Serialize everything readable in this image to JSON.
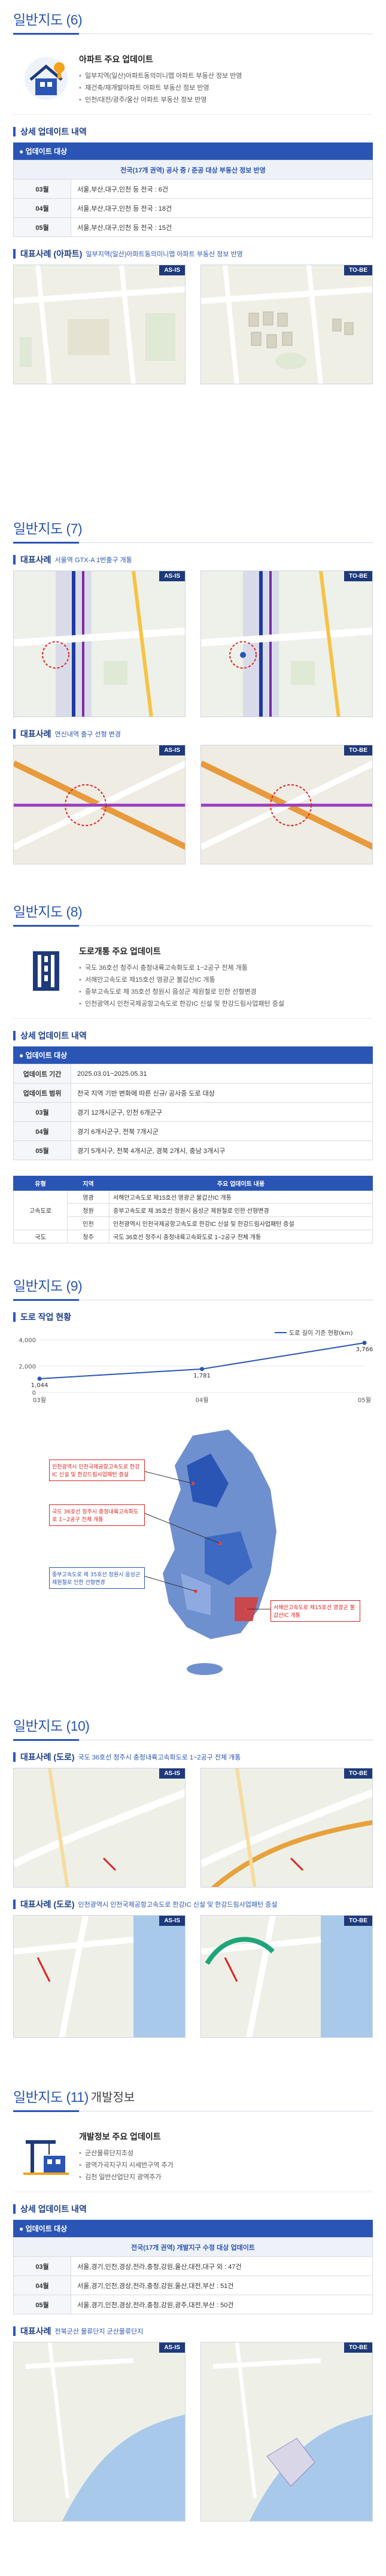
{
  "s6": {
    "title": "일반지도 (6)",
    "intro_head": "아파트 주요 업데이트",
    "intro_items": [
      "일부지역(일산)아파트동의미니맵 아파트 부동산 정보 반영",
      "재건축/재개발아파트 아파트 부동산 정보 반영",
      "인천/대전/광주/울산 아파트 부동산 정보 반영"
    ],
    "detail_title": "상세 업데이트 내역",
    "update_bar": "업데이트 대상",
    "table_header": "전국(17개 권역) 공사 중 / 준공 대상 부동산 정보 반영",
    "rows": [
      {
        "label": "03월",
        "value": "서울,부산,대구,인천 등 전국 : 6건"
      },
      {
        "label": "04월",
        "value": "서울,부산,대구,인천 등 전국 : 18건"
      },
      {
        "label": "05월",
        "value": "서울,부산,대구,인천 등 전국 : 15건"
      }
    ],
    "case_title": "대표사례 (아파트)",
    "case_note": "일부지역(일산)아파트동의미니맵 아파트 부동산 정보 반영",
    "as_is": "AS-IS",
    "to_be": "TO-BE"
  },
  "s7": {
    "title": "일반지도 (7)",
    "case1_title": "대표사례",
    "case1_note": "서울역 GTX-A 1번출구 개통",
    "case2_title": "대표사례",
    "case2_note": "연신내역 출구 선형 변경",
    "as_is": "AS-IS",
    "to_be": "TO-BE"
  },
  "s8": {
    "title": "일반지도 (8)",
    "intro_head": "도로개통 주요 업데이트",
    "intro_items": [
      "국도 36호선 청주시 충청내륙고속화도로 1~2공구 전체 개통",
      "서해안고속도로 제15호선 영광군 불갑산IC 개통",
      "중부고속도로 제 35호선 청원시 음성군 제원철로 인한 선형변경",
      "인천광역시 인천국제공항고속도로 한강IC 신설 및 한강드림사업패턴 증설"
    ],
    "detail_title": "상세 업데이트 내역",
    "update_bar": "업데이트 대상",
    "rows": [
      {
        "label": "업데이트 기간",
        "value": "2025.03.01~2025.05.31"
      },
      {
        "label": "업데이트 범위",
        "value": "전국 지역 기반 변화에 따른 신규/ 공사중 도로 대상"
      },
      {
        "label": "03월",
        "value": "경기 12개시군구, 인천 6개군구"
      },
      {
        "label": "04월",
        "value": "경기 6개시군구, 전북 7개시군"
      },
      {
        "label": "05월",
        "value": "경기 5개시구, 전북 4개시군, 경북 2개시, 충남 3개시구"
      }
    ],
    "mini_headers": [
      "유형",
      "지역",
      "주요 업데이트 내용"
    ],
    "mini_rows": [
      {
        "type": "고속도로",
        "region": "영광",
        "content": "서해안고속도로 제15호선 영광군 불갑산IC 개통"
      },
      {
        "type": "",
        "region": "청원",
        "content": "중부고속도로 제 35호선 청원시 음성군 제원철로 인한 선형변경"
      },
      {
        "type": "",
        "region": "인천",
        "content": "인천광역시 인천국제공항고속도로 한강IC 신설 및 한강드림사업패턴 증설"
      },
      {
        "type": "국도",
        "region": "청주",
        "content": "국도 36호선 청주시 충청내륙고속화도로 1~2공구 전체 개통"
      }
    ]
  },
  "s9": {
    "title": "일반지도 (9)",
    "chart_title": "도로 작업 현황",
    "callouts": [
      "인천광역시 인천국제공항고속도로 한강IC 신설 및 한강드림사업패턴 증설",
      "국도 36호선 청주시 충청내륙고속화도로 1~2공구 전체 개통",
      "중부고속도로 제 35호선 청원시 음성군 제원철로 인한 선형변경",
      "서해안고속도로 제15호선 영광군 불갑산IC 개통"
    ]
  },
  "chart_data": {
    "type": "line",
    "title": "도로 작업 현황",
    "categories": [
      "03월",
      "04월",
      "05월"
    ],
    "series": [
      {
        "name": "도로 길이 기준 현황(km)",
        "values": [
          1044,
          1781,
          3766
        ]
      }
    ],
    "value_labels": [
      "1,044",
      "1,781",
      "3,766"
    ],
    "ylim": [
      0,
      4000
    ],
    "yticks": [
      "0",
      "2,000",
      "4,000"
    ],
    "legend": "top-right",
    "color": "#2a55b5"
  },
  "s10": {
    "title": "일반지도 (10)",
    "case1_title": "대표사례 (도로)",
    "case1_note": "국도 36호선 청주시 충청내륙고속화도로 1~2공구 전체 개통",
    "case2_title": "대표사례 (도로)",
    "case2_note": "인천광역시 인천국제공항고속도로 한강IC 신설 및 한강드림사업패턴 증설",
    "as_is": "AS-IS",
    "to_be": "TO-BE"
  },
  "s11": {
    "title": "일반지도 (11)",
    "title_sub": "개발정보",
    "intro_head": "개발정보 주요 업데이트",
    "intro_items": [
      "군산물류단지조성",
      "광역가곡지구지 시세반구역 추가",
      "김천 일반산업단지 광역추가"
    ],
    "detail_title": "상세 업데이트 내역",
    "update_bar": "업데이트 대상",
    "table_header": "전국(17개 권역) 개발지구 수정 대상 업데이트",
    "rows": [
      {
        "label": "03월",
        "value": "서울,경기,인천,경상,전라,충청,강원,울산,대전,대구 외 : 47건"
      },
      {
        "label": "04월",
        "value": "서울,경기,인천,경상,전라,충청,강원,울산,대전,부산 : 51건"
      },
      {
        "label": "05월",
        "value": "서울,경기,인천,경상,전라,충청,강원,광주,대전,부산 : 50건"
      }
    ],
    "case_title": "대표사례",
    "case_note": "전북군산 물류단지 군산물류단지",
    "as_is": "AS-IS",
    "to_be": "TO-BE"
  }
}
